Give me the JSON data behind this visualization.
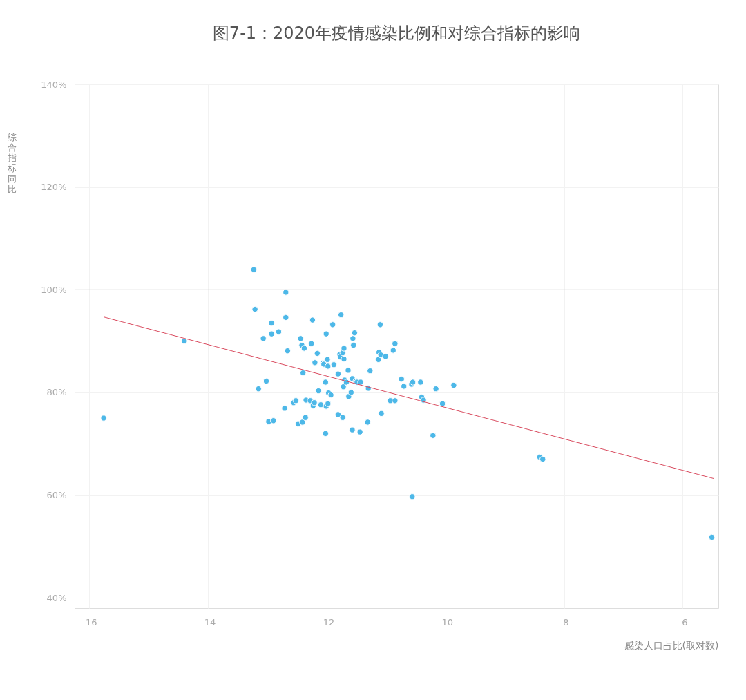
{
  "chart_data": {
    "type": "scatter",
    "title": "图7-1：2020年疫情感染比例和对综合指标的影响",
    "xlabel": "感染人口占比(取对数)",
    "ylabel": "综合指标同比",
    "xlim": [
      -16.25,
      -5.4
    ],
    "ylim": [
      38,
      140
    ],
    "xticks": [
      -16,
      -14,
      -12,
      -10,
      -8,
      -6
    ],
    "yticks": [
      {
        "value": 40,
        "label": "40%"
      },
      {
        "value": 60,
        "label": "60%"
      },
      {
        "value": 80,
        "label": "80%"
      },
      {
        "value": 100,
        "label": "100%"
      },
      {
        "value": 120,
        "label": "120%"
      },
      {
        "value": 140,
        "label": "140%"
      }
    ],
    "grid": true,
    "ref_lines": [
      {
        "axis": "y",
        "value": 100,
        "color": "#d0d0d0"
      }
    ],
    "series": [
      {
        "type": "scatter",
        "marker": "circle",
        "color": "#4db8e8",
        "x": [
          -15.76,
          -14.4,
          -13.23,
          -13.21,
          -13.15,
          -13.07,
          -13.02,
          -12.98,
          -12.93,
          -12.9,
          -12.93,
          -12.81,
          -12.71,
          -12.69,
          -12.69,
          -12.66,
          -12.56,
          -12.52,
          -12.48,
          -12.44,
          -12.42,
          -12.41,
          -12.4,
          -12.38,
          -12.36,
          -12.35,
          -12.28,
          -12.26,
          -12.24,
          -12.23,
          -12.21,
          -12.2,
          -12.16,
          -12.14,
          -12.1,
          -12.06,
          -12.05,
          -12.01,
          -12.01,
          -11.99,
          -12.02,
          -11.98,
          -12.02,
          -11.98,
          -11.97,
          -11.93,
          -11.9,
          -11.88,
          -11.81,
          -11.81,
          -11.78,
          -11.77,
          -11.76,
          -11.73,
          -11.73,
          -11.71,
          -11.72,
          -11.71,
          -11.7,
          -11.67,
          -11.64,
          -11.63,
          -11.57,
          -11.59,
          -11.57,
          -11.53,
          -11.56,
          -11.55,
          -11.51,
          -11.49,
          -11.43,
          -11.44,
          -11.3,
          -11.31,
          -11.27,
          -11.13,
          -11.12,
          -11.1,
          -11.08,
          -11.09,
          -11.01,
          -10.93,
          -10.88,
          -10.85,
          -10.85,
          -10.74,
          -10.7,
          -10.57,
          -10.55,
          -10.56,
          -10.42,
          -10.4,
          -10.37,
          -10.21,
          -10.16,
          -10.05,
          -9.86,
          -8.41,
          -8.36,
          -5.51
        ],
        "values": [
          75.0,
          90.0,
          103.9,
          96.2,
          80.7,
          90.5,
          82.2,
          74.3,
          93.5,
          74.5,
          91.4,
          91.8,
          76.9,
          99.5,
          94.6,
          88.1,
          78.0,
          78.4,
          73.9,
          90.5,
          89.2,
          74.2,
          83.8,
          88.6,
          75.1,
          78.5,
          78.4,
          89.5,
          94.1,
          77.4,
          78.0,
          85.8,
          87.6,
          80.3,
          77.6,
          85.7,
          85.5,
          77.3,
          91.4,
          86.4,
          82.0,
          77.8,
          72.0,
          85.1,
          79.9,
          79.5,
          93.2,
          85.4,
          75.7,
          83.6,
          87.4,
          86.9,
          95.1,
          87.7,
          75.1,
          86.5,
          81.1,
          88.6,
          82.4,
          82.0,
          84.3,
          79.2,
          82.7,
          80.0,
          72.7,
          91.6,
          90.5,
          89.2,
          82.2,
          82.0,
          82.0,
          72.3,
          80.8,
          74.2,
          84.2,
          86.4,
          87.8,
          93.2,
          75.9,
          87.3,
          87.0,
          78.4,
          88.2,
          89.5,
          78.4,
          82.6,
          81.2,
          81.6,
          82.0,
          59.7,
          82.0,
          79.1,
          78.5,
          71.6,
          80.7,
          77.8,
          81.4,
          67.4,
          67.0,
          51.8
        ]
      },
      {
        "type": "line",
        "color": "#d94a5e",
        "x": [
          -15.76,
          -5.47
        ],
        "values": [
          94.7,
          63.2
        ]
      }
    ]
  }
}
